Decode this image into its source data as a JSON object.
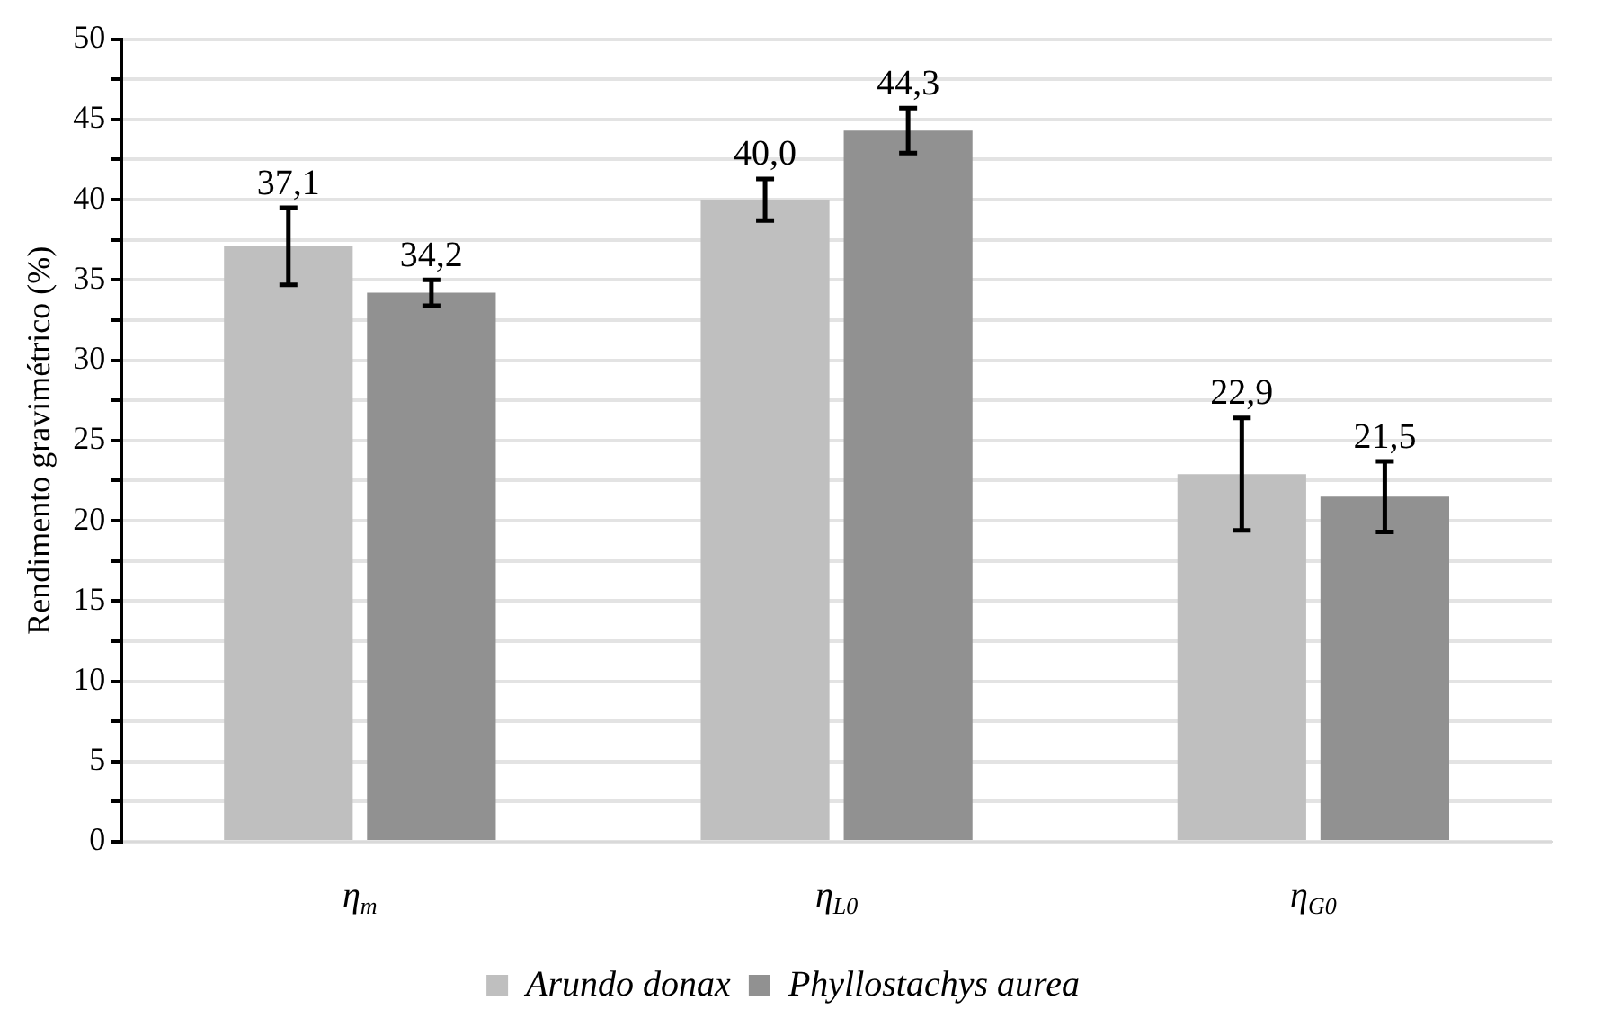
{
  "chart_data": {
    "type": "bar",
    "ylabel": "Rendimento gravimétrico (%)",
    "categories": [
      "η$_{m}$",
      "η$_{L0}$",
      "η$_{G0}$"
    ],
    "series": [
      {
        "name": "Arundo donax",
        "color": "#bfbfbf",
        "values": [
          37.1,
          40.0,
          22.9
        ],
        "errors": [
          2.4,
          1.3,
          3.5
        ],
        "value_labels": [
          "37,1",
          "40,0",
          "22,9"
        ]
      },
      {
        "name": "Phyllostachys aurea",
        "color": "#919191",
        "values": [
          34.2,
          44.3,
          21.5
        ],
        "errors": [
          0.8,
          1.4,
          2.2
        ],
        "value_labels": [
          "34,2",
          "44,3",
          "21,5"
        ]
      }
    ],
    "ylim": [
      0,
      50
    ],
    "yticks": [
      0,
      {
        "value": 2.5,
        "label": null
      },
      5,
      {
        "value": 7.5,
        "label": null
      },
      10,
      {
        "value": 12.5,
        "label": null
      },
      15,
      {
        "value": 17.5,
        "label": null
      },
      20,
      {
        "value": 22.5,
        "label": null
      },
      25,
      {
        "value": 27.5,
        "label": null
      },
      30,
      {
        "value": 32.5,
        "label": null
      },
      35,
      {
        "value": 37.5,
        "label": null
      },
      40,
      {
        "value": 42.5,
        "label": null
      },
      45,
      {
        "value": 47.5,
        "label": null
      },
      50
    ],
    "grid": "y",
    "legend": "bottom"
  }
}
